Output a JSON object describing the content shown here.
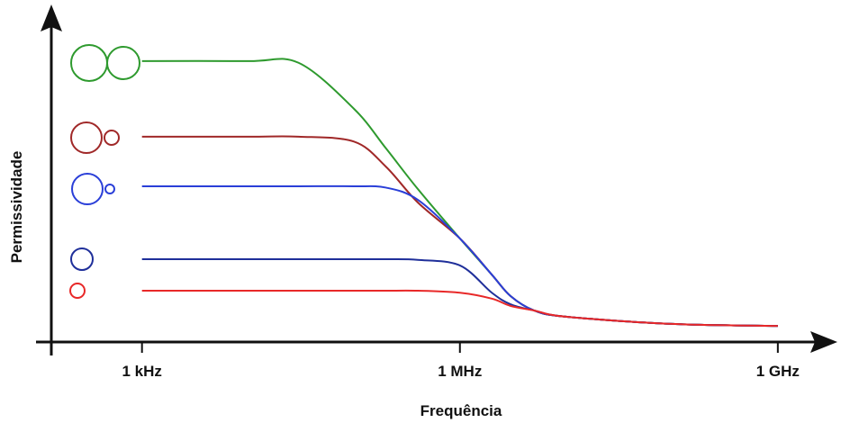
{
  "chart_data": {
    "type": "line",
    "x_label": "Frequência",
    "y_label": "Permissividade",
    "x": [
      1000,
      10000,
      30000,
      100000,
      200000,
      400000,
      1000000,
      2000000,
      3000000,
      5000000,
      10000000,
      100000000,
      1000000000
    ],
    "series": [
      {
        "color": "#2e9a2e",
        "values": [
          85.5,
          85.5,
          85,
          71,
          59,
          46.6,
          31.5,
          20.5,
          14,
          9.6,
          7.7,
          5.5,
          4.9
        ]
      },
      {
        "color": "#a02828",
        "values": [
          62.5,
          62.5,
          62.5,
          61,
          53.4,
          42.5,
          31.5,
          20.5,
          14,
          9.6,
          7.7,
          5.5,
          4.9
        ]
      },
      {
        "color": "#2a3fd8",
        "values": [
          47.4,
          47.4,
          47.4,
          47.4,
          47,
          43.3,
          31.5,
          20.5,
          14,
          9.6,
          7.7,
          5.5,
          4.9
        ]
      },
      {
        "color": "#1f2f9a",
        "values": [
          25.2,
          25.2,
          25.2,
          25.2,
          25.2,
          25,
          23.3,
          15,
          11.5,
          9.6,
          7.7,
          5.5,
          4.9
        ]
      },
      {
        "color": "#e82828",
        "values": [
          15.6,
          15.6,
          15.6,
          15.6,
          15.6,
          15.6,
          15,
          13.2,
          11,
          9.6,
          7.7,
          5.5,
          4.9
        ]
      }
    ],
    "x_log": true,
    "xlim": [
      100,
      3000000000
    ],
    "ylim": [
      0,
      100
    ],
    "xticks": [
      {
        "value": 1000,
        "label": "1 kHz"
      },
      {
        "value": 1000000,
        "label": "1 MHz"
      },
      {
        "value": 1000000000,
        "label": "1 GHz"
      }
    ]
  }
}
